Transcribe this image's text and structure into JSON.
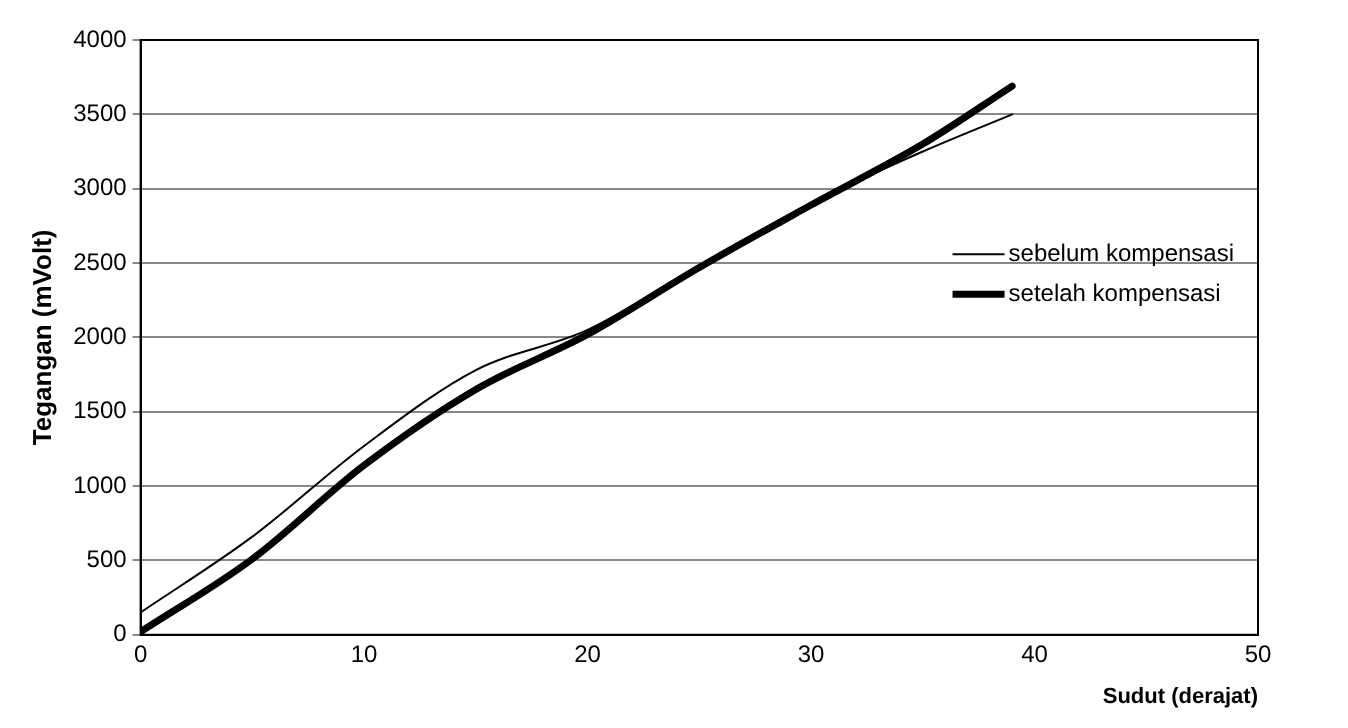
{
  "chart_data": {
    "type": "line",
    "xlabel": "Sudut (derajat)",
    "ylabel": "Tegangan (mVolt)",
    "xlim": [
      0,
      50
    ],
    "xticks": [
      0,
      10,
      20,
      30,
      40,
      50
    ],
    "ylim": [
      0,
      4000
    ],
    "yticks": [
      0,
      500,
      1000,
      1500,
      2000,
      2500,
      3000,
      3500,
      4000
    ],
    "grid": "y",
    "legend": "right",
    "marker": "none",
    "line_style": "solid",
    "x": [
      0,
      5,
      10,
      15,
      20,
      25,
      30,
      35,
      39
    ],
    "series": [
      {
        "name": "sebelum kompensasi",
        "color": "#000000",
        "values": [
          150,
          660,
          1270,
          1780,
          2050,
          2480,
          2900,
          3250,
          3500
        ]
      },
      {
        "name": "setelah kompensasi",
        "color": "#000000",
        "values": [
          20,
          510,
          1140,
          1650,
          2020,
          2470,
          2890,
          3300,
          3690
        ]
      }
    ]
  }
}
